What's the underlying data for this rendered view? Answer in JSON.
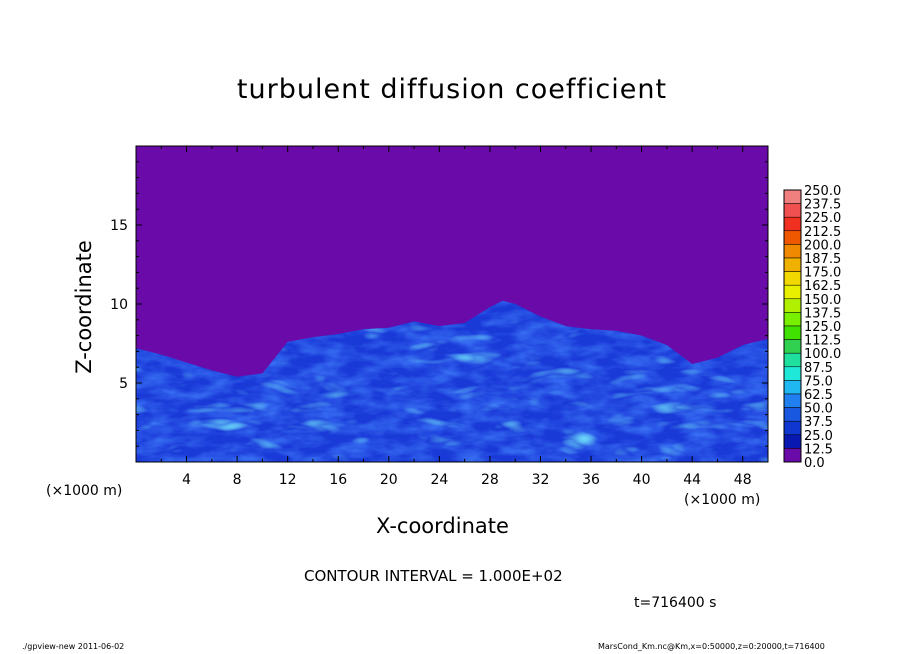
{
  "chart_data": {
    "type": "heatmap",
    "title": "turbulent diffusion coefficient",
    "xlabel": "X-coordinate",
    "ylabel": "Z-coordinate",
    "x_unit_label": "(×1000 m)",
    "x_ticks": [
      "4",
      "8",
      "12",
      "16",
      "20",
      "24",
      "28",
      "32",
      "36",
      "40",
      "44",
      "48"
    ],
    "y_ticks": [
      "5",
      "10",
      "15"
    ],
    "xlim": [
      0,
      50
    ],
    "ylim": [
      0,
      20
    ],
    "colorbar": {
      "labels": [
        "250.0",
        "237.5",
        "225.0",
        "212.5",
        "200.0",
        "187.5",
        "175.0",
        "162.5",
        "150.0",
        "137.5",
        "125.0",
        "112.5",
        "100.0",
        "87.5",
        "75.0",
        "62.5",
        "50.0",
        "37.5",
        "25.0",
        "12.5",
        "0.0"
      ],
      "colors": [
        "#f08080",
        "#f05050",
        "#f03020",
        "#f05800",
        "#f08800",
        "#f0b000",
        "#f0d800",
        "#e8f000",
        "#b0f000",
        "#78f000",
        "#40e000",
        "#30d050",
        "#20e0a0",
        "#20e8d8",
        "#20b8f0",
        "#2080f0",
        "#1858e0",
        "#1038d0",
        "#0818b0",
        "#6a0aa8"
      ]
    },
    "field_profile": {
      "x": [
        0,
        2,
        4,
        6,
        8,
        10,
        12,
        14,
        16,
        18,
        20,
        22,
        24,
        26,
        28,
        29,
        30,
        32,
        34,
        36,
        38,
        40,
        42,
        44,
        46,
        48,
        50
      ],
      "turbulent_top_z": [
        7.2,
        6.8,
        6.3,
        5.8,
        5.4,
        5.6,
        7.6,
        7.9,
        8.1,
        8.4,
        8.5,
        8.9,
        8.6,
        8.8,
        9.8,
        10.2,
        10.0,
        9.2,
        8.6,
        8.4,
        8.3,
        8.0,
        7.4,
        6.2,
        6.6,
        7.4,
        7.8
      ]
    },
    "background_color": "#6a0aa8",
    "contour_interval_text": "CONTOUR INTERVAL = 1.000E+02",
    "time_text": "t=716400 s"
  },
  "footer": {
    "left": "./gpview-new   2011-06-02",
    "right": "MarsCond_Km.nc@Km,x=0:50000,z=0:20000,t=716400"
  }
}
